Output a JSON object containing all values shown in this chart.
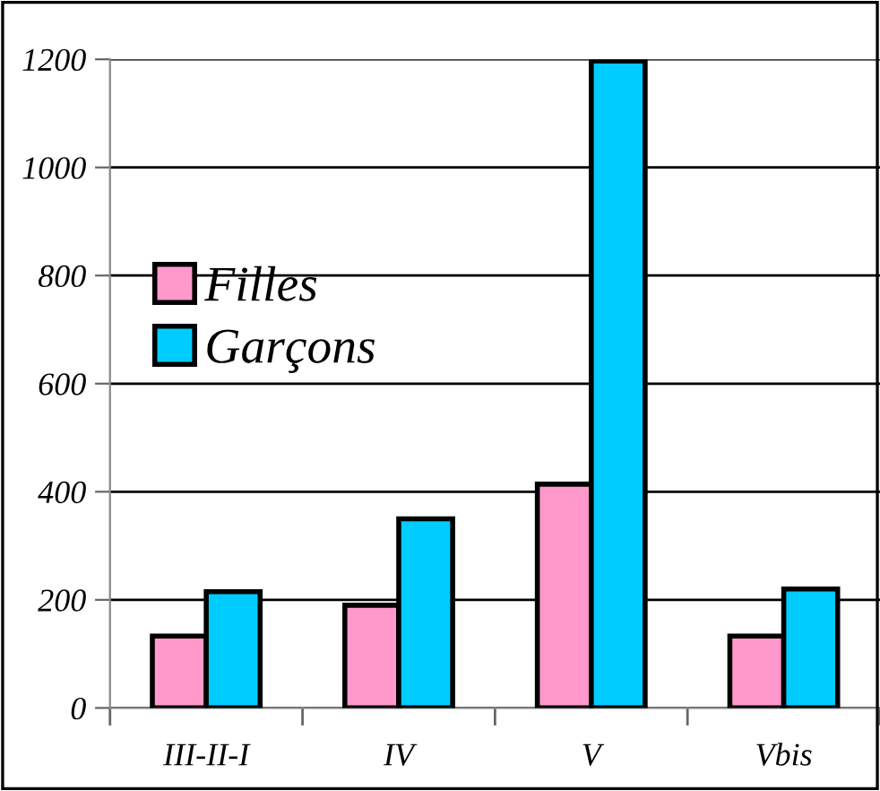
{
  "chart_data": {
    "type": "bar",
    "categories": [
      "III-II-I",
      "IV",
      "V",
      "Vbis"
    ],
    "series": [
      {
        "name": "Filles",
        "color": "#ff99cc",
        "values": [
          133,
          190,
          414,
          133
        ]
      },
      {
        "name": "Garçons",
        "color": "#00ccff",
        "values": [
          215,
          350,
          1197,
          220
        ]
      }
    ],
    "ylim": [
      0,
      1200
    ],
    "yticks": [
      0,
      200,
      400,
      600,
      800,
      1000,
      1200
    ],
    "grid": "y",
    "legend": "left"
  }
}
